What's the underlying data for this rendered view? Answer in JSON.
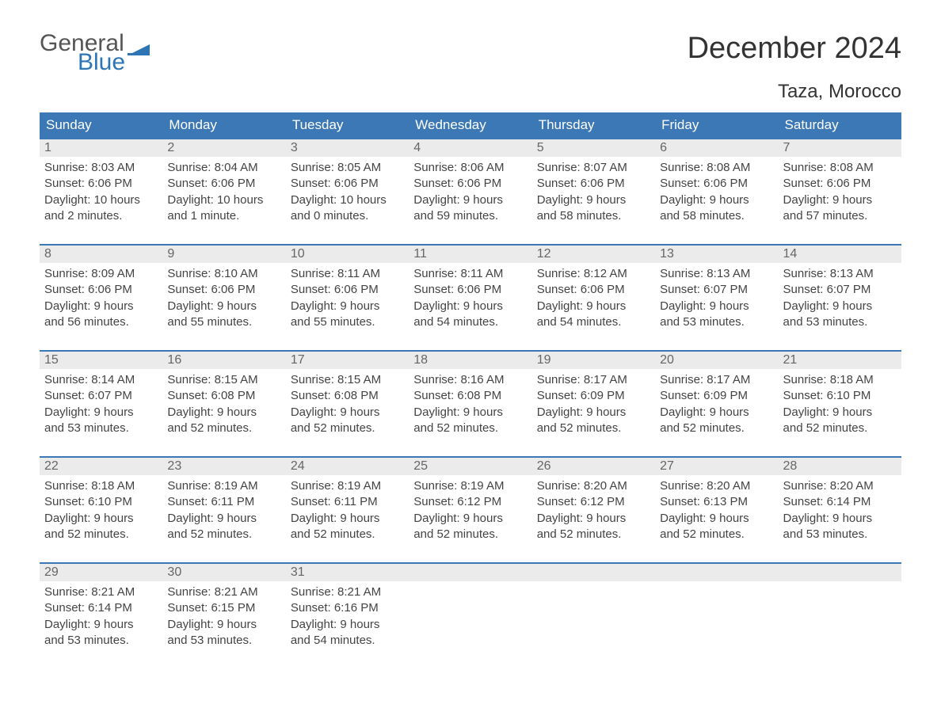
{
  "logo": {
    "text_general": "General",
    "text_blue": "Blue",
    "flag_color": "#2e75b6"
  },
  "title": "December 2024",
  "subtitle": "Taza, Morocco",
  "colors": {
    "header_bg": "#3b78b5",
    "header_text": "#ffffff",
    "daynum_bg": "#ebebeb",
    "daynum_text": "#666666",
    "body_text": "#444444",
    "week_border": "#3b78b5",
    "page_bg": "#ffffff"
  },
  "day_headers": [
    "Sunday",
    "Monday",
    "Tuesday",
    "Wednesday",
    "Thursday",
    "Friday",
    "Saturday"
  ],
  "weeks": [
    [
      {
        "n": "1",
        "sunrise": "Sunrise: 8:03 AM",
        "sunset": "Sunset: 6:06 PM",
        "d1": "Daylight: 10 hours",
        "d2": "and 2 minutes."
      },
      {
        "n": "2",
        "sunrise": "Sunrise: 8:04 AM",
        "sunset": "Sunset: 6:06 PM",
        "d1": "Daylight: 10 hours",
        "d2": "and 1 minute."
      },
      {
        "n": "3",
        "sunrise": "Sunrise: 8:05 AM",
        "sunset": "Sunset: 6:06 PM",
        "d1": "Daylight: 10 hours",
        "d2": "and 0 minutes."
      },
      {
        "n": "4",
        "sunrise": "Sunrise: 8:06 AM",
        "sunset": "Sunset: 6:06 PM",
        "d1": "Daylight: 9 hours",
        "d2": "and 59 minutes."
      },
      {
        "n": "5",
        "sunrise": "Sunrise: 8:07 AM",
        "sunset": "Sunset: 6:06 PM",
        "d1": "Daylight: 9 hours",
        "d2": "and 58 minutes."
      },
      {
        "n": "6",
        "sunrise": "Sunrise: 8:08 AM",
        "sunset": "Sunset: 6:06 PM",
        "d1": "Daylight: 9 hours",
        "d2": "and 58 minutes."
      },
      {
        "n": "7",
        "sunrise": "Sunrise: 8:08 AM",
        "sunset": "Sunset: 6:06 PM",
        "d1": "Daylight: 9 hours",
        "d2": "and 57 minutes."
      }
    ],
    [
      {
        "n": "8",
        "sunrise": "Sunrise: 8:09 AM",
        "sunset": "Sunset: 6:06 PM",
        "d1": "Daylight: 9 hours",
        "d2": "and 56 minutes."
      },
      {
        "n": "9",
        "sunrise": "Sunrise: 8:10 AM",
        "sunset": "Sunset: 6:06 PM",
        "d1": "Daylight: 9 hours",
        "d2": "and 55 minutes."
      },
      {
        "n": "10",
        "sunrise": "Sunrise: 8:11 AM",
        "sunset": "Sunset: 6:06 PM",
        "d1": "Daylight: 9 hours",
        "d2": "and 55 minutes."
      },
      {
        "n": "11",
        "sunrise": "Sunrise: 8:11 AM",
        "sunset": "Sunset: 6:06 PM",
        "d1": "Daylight: 9 hours",
        "d2": "and 54 minutes."
      },
      {
        "n": "12",
        "sunrise": "Sunrise: 8:12 AM",
        "sunset": "Sunset: 6:06 PM",
        "d1": "Daylight: 9 hours",
        "d2": "and 54 minutes."
      },
      {
        "n": "13",
        "sunrise": "Sunrise: 8:13 AM",
        "sunset": "Sunset: 6:07 PM",
        "d1": "Daylight: 9 hours",
        "d2": "and 53 minutes."
      },
      {
        "n": "14",
        "sunrise": "Sunrise: 8:13 AM",
        "sunset": "Sunset: 6:07 PM",
        "d1": "Daylight: 9 hours",
        "d2": "and 53 minutes."
      }
    ],
    [
      {
        "n": "15",
        "sunrise": "Sunrise: 8:14 AM",
        "sunset": "Sunset: 6:07 PM",
        "d1": "Daylight: 9 hours",
        "d2": "and 53 minutes."
      },
      {
        "n": "16",
        "sunrise": "Sunrise: 8:15 AM",
        "sunset": "Sunset: 6:08 PM",
        "d1": "Daylight: 9 hours",
        "d2": "and 52 minutes."
      },
      {
        "n": "17",
        "sunrise": "Sunrise: 8:15 AM",
        "sunset": "Sunset: 6:08 PM",
        "d1": "Daylight: 9 hours",
        "d2": "and 52 minutes."
      },
      {
        "n": "18",
        "sunrise": "Sunrise: 8:16 AM",
        "sunset": "Sunset: 6:08 PM",
        "d1": "Daylight: 9 hours",
        "d2": "and 52 minutes."
      },
      {
        "n": "19",
        "sunrise": "Sunrise: 8:17 AM",
        "sunset": "Sunset: 6:09 PM",
        "d1": "Daylight: 9 hours",
        "d2": "and 52 minutes."
      },
      {
        "n": "20",
        "sunrise": "Sunrise: 8:17 AM",
        "sunset": "Sunset: 6:09 PM",
        "d1": "Daylight: 9 hours",
        "d2": "and 52 minutes."
      },
      {
        "n": "21",
        "sunrise": "Sunrise: 8:18 AM",
        "sunset": "Sunset: 6:10 PM",
        "d1": "Daylight: 9 hours",
        "d2": "and 52 minutes."
      }
    ],
    [
      {
        "n": "22",
        "sunrise": "Sunrise: 8:18 AM",
        "sunset": "Sunset: 6:10 PM",
        "d1": "Daylight: 9 hours",
        "d2": "and 52 minutes."
      },
      {
        "n": "23",
        "sunrise": "Sunrise: 8:19 AM",
        "sunset": "Sunset: 6:11 PM",
        "d1": "Daylight: 9 hours",
        "d2": "and 52 minutes."
      },
      {
        "n": "24",
        "sunrise": "Sunrise: 8:19 AM",
        "sunset": "Sunset: 6:11 PM",
        "d1": "Daylight: 9 hours",
        "d2": "and 52 minutes."
      },
      {
        "n": "25",
        "sunrise": "Sunrise: 8:19 AM",
        "sunset": "Sunset: 6:12 PM",
        "d1": "Daylight: 9 hours",
        "d2": "and 52 minutes."
      },
      {
        "n": "26",
        "sunrise": "Sunrise: 8:20 AM",
        "sunset": "Sunset: 6:12 PM",
        "d1": "Daylight: 9 hours",
        "d2": "and 52 minutes."
      },
      {
        "n": "27",
        "sunrise": "Sunrise: 8:20 AM",
        "sunset": "Sunset: 6:13 PM",
        "d1": "Daylight: 9 hours",
        "d2": "and 52 minutes."
      },
      {
        "n": "28",
        "sunrise": "Sunrise: 8:20 AM",
        "sunset": "Sunset: 6:14 PM",
        "d1": "Daylight: 9 hours",
        "d2": "and 53 minutes."
      }
    ],
    [
      {
        "n": "29",
        "sunrise": "Sunrise: 8:21 AM",
        "sunset": "Sunset: 6:14 PM",
        "d1": "Daylight: 9 hours",
        "d2": "and 53 minutes."
      },
      {
        "n": "30",
        "sunrise": "Sunrise: 8:21 AM",
        "sunset": "Sunset: 6:15 PM",
        "d1": "Daylight: 9 hours",
        "d2": "and 53 minutes."
      },
      {
        "n": "31",
        "sunrise": "Sunrise: 8:21 AM",
        "sunset": "Sunset: 6:16 PM",
        "d1": "Daylight: 9 hours",
        "d2": "and 54 minutes."
      },
      {
        "empty": true
      },
      {
        "empty": true
      },
      {
        "empty": true
      },
      {
        "empty": true
      }
    ]
  ]
}
